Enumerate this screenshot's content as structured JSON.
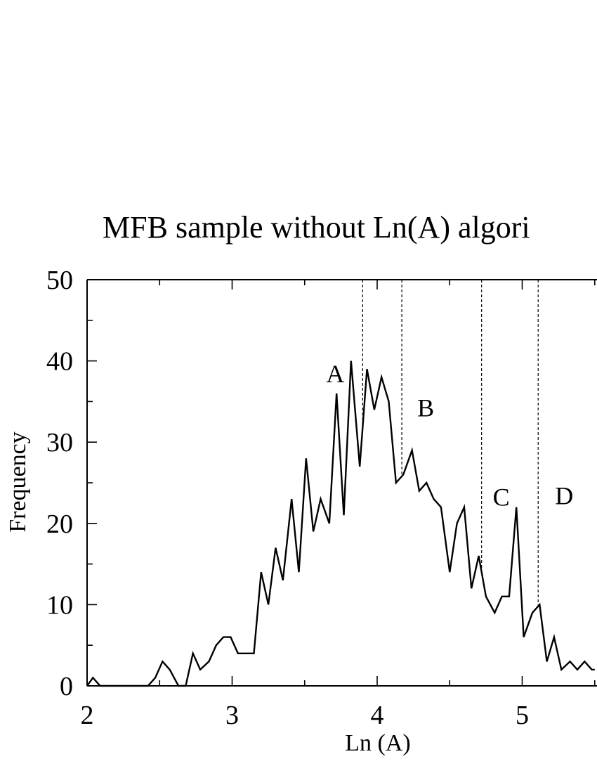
{
  "chart_data": {
    "type": "line",
    "title": "MFB sample without Ln(A) algori",
    "xlabel": "Ln (A)",
    "ylabel": "Frequency",
    "xlim": [
      2,
      5.5
    ],
    "ylim": [
      0,
      50
    ],
    "xticks": [
      "2",
      "3",
      "4",
      "5"
    ],
    "yticks": [
      "0",
      "10",
      "20",
      "30",
      "40",
      "50"
    ],
    "grid": false,
    "series": [
      {
        "x": [
          2.0,
          2.04,
          2.09,
          2.42,
          2.47,
          2.52,
          2.57,
          2.63,
          2.68,
          2.73,
          2.78,
          2.84,
          2.89,
          2.94,
          2.99,
          3.04,
          3.09,
          3.15,
          3.2,
          3.25,
          3.3,
          3.35,
          3.41,
          3.46,
          3.51,
          3.56,
          3.61,
          3.67,
          3.72,
          3.77,
          3.82,
          3.88,
          3.93,
          3.98,
          4.03,
          4.08,
          4.13,
          4.18,
          4.24,
          4.29,
          4.34,
          4.39,
          4.44,
          4.5,
          4.55,
          4.6,
          4.65,
          4.7,
          4.75,
          4.81,
          4.86,
          4.91,
          4.96,
          5.01,
          5.07,
          5.12,
          5.17,
          5.22,
          5.27,
          5.33,
          5.38,
          5.43,
          5.48,
          5.5
        ],
        "values": [
          0,
          1,
          0,
          0,
          1,
          3,
          2,
          0,
          0,
          4,
          2,
          3,
          5,
          6,
          6,
          4,
          4,
          4,
          14,
          10,
          17,
          13,
          23,
          14,
          28,
          19,
          23,
          20,
          36,
          21,
          40,
          27,
          39,
          34,
          38,
          35,
          25,
          26,
          29,
          24,
          25,
          23,
          22,
          14,
          20,
          22,
          12,
          16,
          11,
          9,
          11,
          11,
          22,
          6,
          9,
          10,
          3,
          6,
          2,
          3,
          2,
          3,
          2,
          2
        ]
      }
    ],
    "markers": [
      {
        "label": "A",
        "x": 3.9
      },
      {
        "label": "B",
        "x": 4.17
      },
      {
        "label": "C",
        "x": 4.72
      },
      {
        "label": "D",
        "x": 5.11
      }
    ]
  }
}
